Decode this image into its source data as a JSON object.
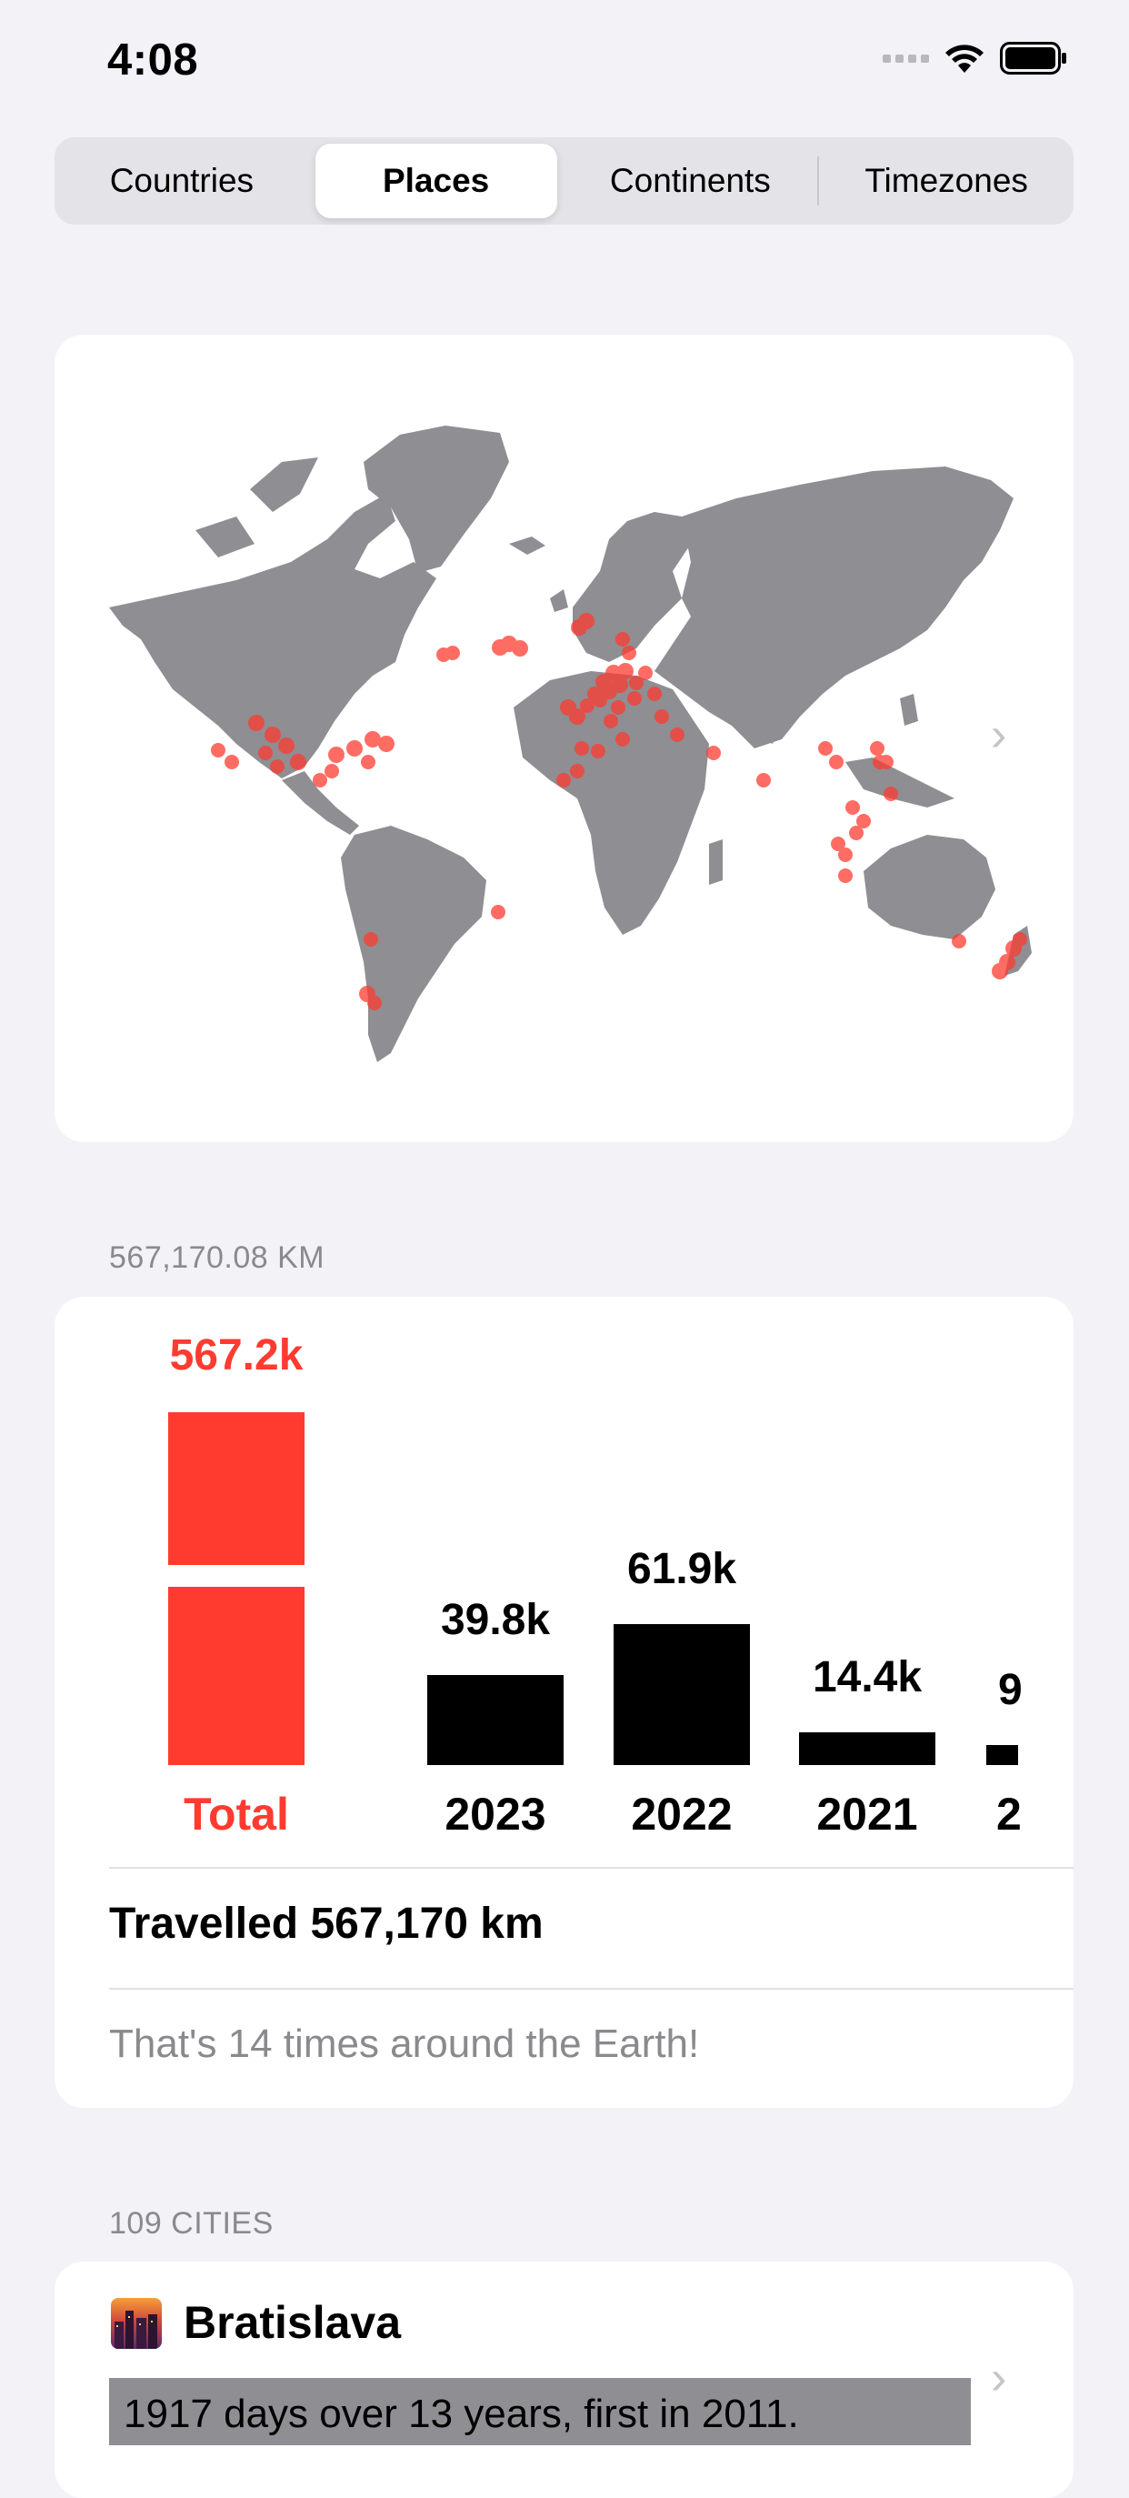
{
  "status_bar": {
    "time": "4:08"
  },
  "segments": [
    {
      "label": "Countries",
      "selected": false
    },
    {
      "label": "Places",
      "selected": true
    },
    {
      "label": "Continents",
      "selected": false
    },
    {
      "label": "Timezones",
      "selected": false
    }
  ],
  "distance_section": {
    "header": "567,170.08 KM"
  },
  "chart_data": {
    "type": "bar",
    "categories": [
      "Total",
      "2023",
      "2022",
      "2021",
      "2"
    ],
    "values": [
      567.2,
      39.8,
      61.9,
      14.4,
      9
    ],
    "value_labels": [
      "567.2k",
      "39.8k",
      "61.9k",
      "14.4k",
      "9"
    ],
    "title": "",
    "xlabel": "",
    "ylabel": "",
    "colors": {
      "total": "#ff3b30",
      "years": "#000000"
    }
  },
  "summary": {
    "travelled": "Travelled 567,170 km",
    "note": "That's 14 times around the Earth!"
  },
  "cities_section": {
    "header": "109 CITIES",
    "first_city": {
      "name": "Bratislava",
      "detail": "1917 days over 13 years, first in 2011."
    }
  },
  "colors": {
    "accent": "#ff3b30",
    "map_land": "#8e8e93",
    "background": "#f2f2f7"
  },
  "icons": [
    "wifi-icon",
    "battery-icon",
    "chevron-right-icon",
    "city-skyline-icon"
  ]
}
